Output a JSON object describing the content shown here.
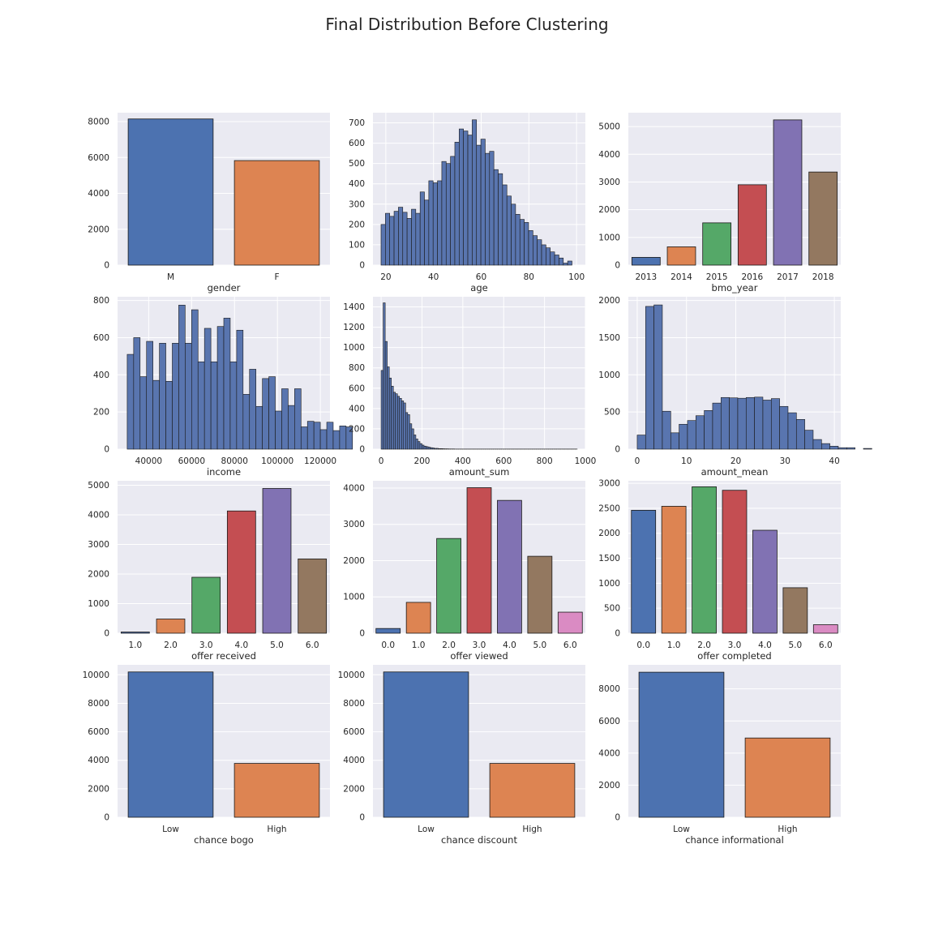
{
  "figure": {
    "title": "Final Distribution Before Clustering"
  },
  "colors": {
    "panel_bg": "#EAEAF2",
    "grid": "#FFFFFF",
    "hist": "#5975AF",
    "edge": "#1A1A1A",
    "palette": [
      "#4C72B0",
      "#DD8452",
      "#55A868",
      "#C44E52",
      "#8172B3",
      "#937860",
      "#DA8BC3"
    ]
  },
  "chart_data": [
    {
      "id": "gender",
      "type": "bar",
      "xlabel": "gender",
      "categories": [
        "M",
        "F"
      ],
      "values": [
        8150,
        5830
      ],
      "ylim": [
        0,
        8500
      ],
      "yticks": [
        0,
        2000,
        4000,
        6000,
        8000
      ],
      "grid": true
    },
    {
      "id": "age",
      "type": "histogram",
      "xlabel": "age",
      "bin_start": 18,
      "bin_width": 1.82,
      "values": [
        200,
        255,
        240,
        265,
        285,
        260,
        230,
        275,
        255,
        360,
        320,
        415,
        405,
        415,
        510,
        500,
        535,
        605,
        670,
        660,
        640,
        715,
        590,
        620,
        550,
        560,
        470,
        450,
        395,
        340,
        300,
        250,
        225,
        210,
        170,
        145,
        125,
        100,
        85,
        65,
        50,
        35,
        10,
        20
      ],
      "xlim": [
        14.6,
        103.7
      ],
      "xticks": [
        20,
        40,
        60,
        80,
        100
      ],
      "ylim": [
        0,
        750
      ],
      "yticks": [
        0,
        100,
        200,
        300,
        400,
        500,
        600,
        700
      ],
      "grid": true
    },
    {
      "id": "bmo_year",
      "type": "bar",
      "xlabel": "bmo_year",
      "categories": [
        "2013",
        "2014",
        "2015",
        "2016",
        "2017",
        "2018"
      ],
      "values": [
        280,
        660,
        1525,
        2900,
        5240,
        3360
      ],
      "ylim": [
        0,
        5500
      ],
      "yticks": [
        0,
        1000,
        2000,
        3000,
        4000,
        5000
      ],
      "grid": true
    },
    {
      "id": "income",
      "type": "histogram",
      "xlabel": "income",
      "bin_start": 30000,
      "bin_width": 3000,
      "values": [
        510,
        600,
        390,
        580,
        370,
        570,
        365,
        570,
        775,
        570,
        750,
        470,
        650,
        470,
        660,
        705,
        470,
        640,
        295,
        430,
        230,
        380,
        390,
        205,
        325,
        235,
        325,
        120,
        150,
        145,
        105,
        145,
        100,
        125,
        120
      ],
      "xlim": [
        25500,
        124500
      ],
      "xticks": [
        40000,
        60000,
        80000,
        100000,
        120000
      ],
      "ylim": [
        0,
        820
      ],
      "yticks": [
        0,
        200,
        400,
        600,
        800
      ],
      "grid": true
    },
    {
      "id": "amount_sum",
      "type": "histogram",
      "xlabel": "amount_sum",
      "bin_start": 0,
      "bin_width": 10,
      "values": [
        775,
        1440,
        1060,
        810,
        700,
        620,
        560,
        545,
        520,
        500,
        475,
        455,
        360,
        340,
        250,
        200,
        140,
        100,
        75,
        55,
        40,
        30,
        25,
        20,
        15,
        12,
        8,
        8,
        5,
        5,
        4,
        3,
        3,
        2,
        2,
        2,
        1,
        1,
        1,
        1,
        1,
        1,
        1,
        1,
        1,
        1,
        1,
        1,
        1,
        1,
        1,
        1,
        1,
        1,
        1,
        1,
        1,
        1,
        1,
        1,
        1,
        1,
        1,
        1,
        1,
        1,
        1,
        1,
        1,
        1,
        1,
        1,
        1,
        1,
        1,
        1,
        1,
        1,
        1,
        1,
        1,
        1,
        1,
        1,
        1,
        1,
        1,
        1,
        1,
        1,
        1,
        1,
        1,
        1,
        1,
        1
      ],
      "xlim": [
        -40,
        1000
      ],
      "xticks": [
        0,
        200,
        400,
        600,
        800,
        1000
      ],
      "ylim": [
        0,
        1500
      ],
      "yticks": [
        0,
        200,
        400,
        600,
        800,
        1000,
        1200,
        1400
      ],
      "grid": true
    },
    {
      "id": "amount_mean",
      "type": "histogram",
      "xlabel": "amount_mean",
      "bin_start": 0,
      "bin_width": 1.7,
      "values": [
        190,
        1920,
        1940,
        510,
        220,
        335,
        385,
        450,
        520,
        620,
        695,
        690,
        685,
        695,
        700,
        660,
        680,
        575,
        490,
        400,
        255,
        130,
        75,
        40,
        20,
        20,
        0,
        10
      ],
      "xlim": [
        -1.8,
        41.3
      ],
      "xticks": [
        0,
        10,
        20,
        30,
        40
      ],
      "ylim": [
        0,
        2050
      ],
      "yticks": [
        0,
        500,
        1000,
        1500,
        2000
      ],
      "grid": true
    },
    {
      "id": "offer_received",
      "type": "bar",
      "xlabel": "offer received",
      "categories": [
        "1.0",
        "2.0",
        "3.0",
        "4.0",
        "5.0",
        "6.0"
      ],
      "values": [
        40,
        480,
        1890,
        4130,
        4890,
        2510
      ],
      "ylim": [
        0,
        5150
      ],
      "yticks": [
        0,
        1000,
        2000,
        3000,
        4000,
        5000
      ],
      "grid": true
    },
    {
      "id": "offer_viewed",
      "type": "bar",
      "xlabel": "offer viewed",
      "categories": [
        "0.0",
        "1.0",
        "2.0",
        "3.0",
        "4.0",
        "5.0",
        "6.0"
      ],
      "values": [
        130,
        850,
        2610,
        4010,
        3660,
        2120,
        580
      ],
      "ylim": [
        0,
        4200
      ],
      "yticks": [
        0,
        1000,
        2000,
        3000,
        4000
      ],
      "grid": true
    },
    {
      "id": "offer_completed",
      "type": "bar",
      "xlabel": "offer completed",
      "categories": [
        "0.0",
        "1.0",
        "2.0",
        "3.0",
        "4.0",
        "5.0",
        "6.0"
      ],
      "values": [
        2460,
        2540,
        2930,
        2860,
        2060,
        910,
        170
      ],
      "ylim": [
        0,
        3050
      ],
      "yticks": [
        0,
        500,
        1000,
        1500,
        2000,
        2500,
        3000
      ],
      "grid": true
    },
    {
      "id": "chance_bogo",
      "type": "bar",
      "xlabel": "chance bogo",
      "categories": [
        "Low",
        "High"
      ],
      "values": [
        10200,
        3780
      ],
      "ylim": [
        0,
        10700
      ],
      "yticks": [
        0,
        2000,
        4000,
        6000,
        8000,
        10000
      ],
      "grid": true
    },
    {
      "id": "chance_discount",
      "type": "bar",
      "xlabel": "chance discount",
      "categories": [
        "Low",
        "High"
      ],
      "values": [
        10200,
        3780
      ],
      "ylim": [
        0,
        10700
      ],
      "yticks": [
        0,
        2000,
        4000,
        6000,
        8000,
        10000
      ],
      "grid": true
    },
    {
      "id": "chance_informational",
      "type": "bar",
      "xlabel": "chance informational",
      "categories": [
        "Low",
        "High"
      ],
      "values": [
        9040,
        4940
      ],
      "ylim": [
        0,
        9500
      ],
      "yticks": [
        0,
        2000,
        4000,
        6000,
        8000
      ],
      "grid": true
    }
  ]
}
